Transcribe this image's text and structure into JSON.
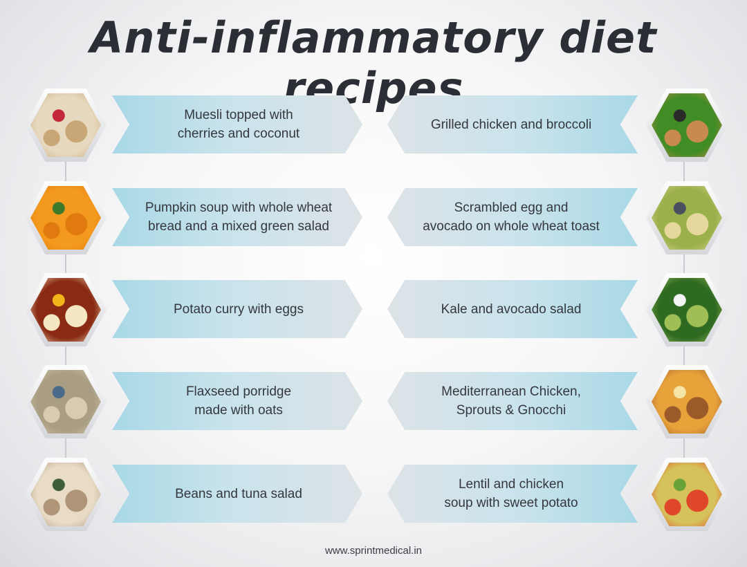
{
  "title": "Anti-inflammatory diet recipes",
  "footer": "www.sprintmedical.in",
  "colors": {
    "banner_blue": "#a9d8e6",
    "banner_grey": "#dde3e7",
    "title": "#2b2e35"
  },
  "left_column": [
    {
      "label": "Muesli topped with\ncherries and coconut",
      "image": "muesli-bowl",
      "colors": [
        "#e6d9bf",
        "#c9a675",
        "#c2283a"
      ]
    },
    {
      "label": "Pumpkin soup with whole wheat\nbread and a mixed green salad",
      "image": "pumpkin-soup",
      "colors": [
        "#f39a1e",
        "#e07a10",
        "#3d7a2a"
      ]
    },
    {
      "label": "Potato curry with eggs",
      "image": "potato-curry",
      "colors": [
        "#8a2a14",
        "#f4e7c2",
        "#f2b51c"
      ]
    },
    {
      "label": "Flaxseed porridge\nmade with oats",
      "image": "flaxseed-porridge",
      "colors": [
        "#a99e83",
        "#d8ccb0",
        "#4a6a8a"
      ]
    },
    {
      "label": "Beans and tuna salad",
      "image": "beans-tuna-salad",
      "colors": [
        "#e8dcc6",
        "#b09478",
        "#3e5e3a"
      ]
    }
  ],
  "right_column": [
    {
      "label": "Grilled chicken and broccoli",
      "image": "chicken-broccoli",
      "colors": [
        "#3f8d24",
        "#c98a4e",
        "#2a2a2a"
      ]
    },
    {
      "label": "Scrambled egg and\navocado on whole wheat toast",
      "image": "egg-avocado-toast",
      "colors": [
        "#9ab04a",
        "#e6d79c",
        "#4a5060"
      ]
    },
    {
      "label": "Kale and avocado salad",
      "image": "kale-avocado-salad",
      "colors": [
        "#2f6a22",
        "#9fbf56",
        "#f4f4f4"
      ]
    },
    {
      "label": "Mediterranean Chicken,\nSprouts & Gnocchi",
      "image": "mediterranean-chicken",
      "colors": [
        "#e8a23a",
        "#9a5a2a",
        "#f5e6a8"
      ]
    },
    {
      "label": "Lentil and chicken\nsoup with sweet potato",
      "image": "lentil-chicken-soup",
      "colors": [
        "#d6c25a",
        "#e0472a",
        "#6aa23a"
      ]
    }
  ]
}
